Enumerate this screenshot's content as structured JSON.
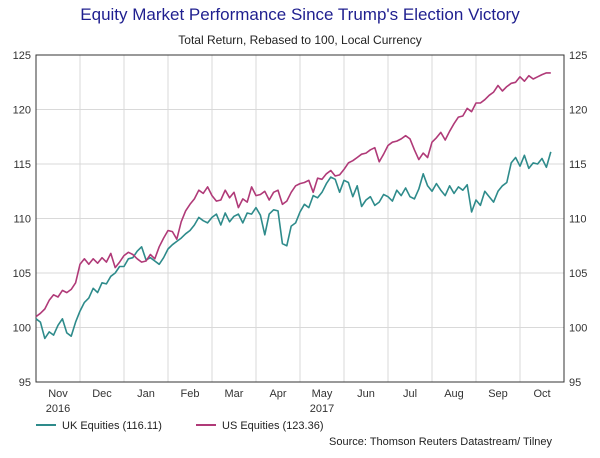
{
  "chart_data": {
    "type": "line",
    "title": "Equity Market Performance Since Trump's Election Victory",
    "subtitle": "Total Return, Rebased to 100, Local Currency",
    "xlabel": "",
    "ylabel": "",
    "ylim": [
      95,
      125
    ],
    "yticks": [
      95,
      100,
      105,
      110,
      115,
      120,
      125
    ],
    "x_tick_labels": [
      "Nov",
      "Dec",
      "Jan",
      "Feb",
      "Mar",
      "Apr",
      "May",
      "Jun",
      "Jul",
      "Aug",
      "Sep",
      "Oct"
    ],
    "x_year_labels": [
      {
        "label": "2016",
        "at_month": 0
      },
      {
        "label": "2017",
        "at_month": 6
      }
    ],
    "x_range": [
      0,
      12
    ],
    "grid": true,
    "legend_position": "bottom",
    "series": [
      {
        "name": "UK Equities (116.11)",
        "color": "#2e8b8b",
        "x": [
          0.0,
          0.1,
          0.2,
          0.3,
          0.4,
          0.5,
          0.6,
          0.7,
          0.8,
          0.9,
          1.0,
          1.1,
          1.2,
          1.3,
          1.4,
          1.5,
          1.6,
          1.7,
          1.8,
          1.9,
          2.0,
          2.1,
          2.2,
          2.3,
          2.4,
          2.5,
          2.6,
          2.7,
          2.8,
          2.9,
          3.0,
          3.1,
          3.2,
          3.3,
          3.4,
          3.5,
          3.6,
          3.7,
          3.8,
          3.9,
          4.0,
          4.1,
          4.2,
          4.3,
          4.4,
          4.5,
          4.6,
          4.7,
          4.8,
          4.9,
          5.0,
          5.1,
          5.2,
          5.3,
          5.4,
          5.5,
          5.6,
          5.7,
          5.8,
          5.9,
          6.0,
          6.1,
          6.2,
          6.3,
          6.4,
          6.5,
          6.6,
          6.7,
          6.8,
          6.9,
          7.0,
          7.1,
          7.2,
          7.3,
          7.4,
          7.5,
          7.6,
          7.7,
          7.8,
          7.9,
          8.0,
          8.1,
          8.2,
          8.3,
          8.4,
          8.5,
          8.6,
          8.7,
          8.8,
          8.9,
          9.0,
          9.1,
          9.2,
          9.3,
          9.4,
          9.5,
          9.6,
          9.7,
          9.8,
          9.9,
          10.0,
          10.1,
          10.2,
          10.3,
          10.4,
          10.5,
          10.6,
          10.7,
          10.8,
          10.9,
          11.0,
          11.1,
          11.2,
          11.3,
          11.4,
          11.5,
          11.6,
          11.7
        ],
        "y": [
          100.8,
          100.5,
          99.0,
          99.6,
          99.3,
          100.2,
          100.8,
          99.5,
          99.2,
          100.5,
          101.5,
          102.3,
          102.7,
          103.6,
          103.2,
          104.1,
          104.0,
          104.7,
          105.0,
          105.6,
          105.6,
          106.3,
          106.4,
          107.0,
          107.4,
          106.2,
          106.4,
          106.1,
          105.8,
          106.4,
          107.2,
          107.6,
          107.9,
          108.2,
          108.6,
          108.9,
          109.4,
          110.1,
          109.8,
          109.6,
          110.1,
          110.4,
          109.4,
          110.5,
          109.7,
          110.2,
          110.4,
          109.6,
          110.5,
          110.4,
          111.0,
          110.3,
          108.5,
          110.4,
          110.8,
          110.7,
          107.7,
          107.5,
          109.3,
          109.6,
          110.6,
          111.3,
          111.0,
          112.1,
          111.9,
          112.4,
          113.2,
          113.8,
          113.6,
          112.4,
          113.5,
          113.3,
          112.0,
          113.0,
          111.1,
          111.7,
          112.0,
          111.2,
          111.5,
          112.2,
          112.0,
          111.6,
          112.6,
          112.1,
          112.8,
          112.0,
          111.8,
          112.7,
          114.1,
          113.0,
          112.5,
          113.2,
          112.6,
          112.1,
          113.0,
          112.3,
          112.9,
          112.6,
          113.1,
          110.6,
          111.7,
          111.2,
          112.5,
          112.0,
          111.5,
          112.5,
          113.0,
          113.3,
          115.1,
          115.6,
          114.8,
          115.8,
          114.6,
          115.1,
          115.0,
          115.5,
          114.7,
          116.11
        ]
      },
      {
        "name": "US Equities (123.36)",
        "color": "#b03a78",
        "x": [
          0.0,
          0.1,
          0.2,
          0.3,
          0.4,
          0.5,
          0.6,
          0.7,
          0.8,
          0.9,
          1.0,
          1.1,
          1.2,
          1.3,
          1.4,
          1.5,
          1.6,
          1.7,
          1.8,
          1.9,
          2.0,
          2.1,
          2.2,
          2.3,
          2.4,
          2.5,
          2.6,
          2.7,
          2.8,
          2.9,
          3.0,
          3.1,
          3.2,
          3.3,
          3.4,
          3.5,
          3.6,
          3.7,
          3.8,
          3.9,
          4.0,
          4.1,
          4.2,
          4.3,
          4.4,
          4.5,
          4.6,
          4.7,
          4.8,
          4.9,
          5.0,
          5.1,
          5.2,
          5.3,
          5.4,
          5.5,
          5.6,
          5.7,
          5.8,
          5.9,
          6.0,
          6.1,
          6.2,
          6.3,
          6.4,
          6.5,
          6.6,
          6.7,
          6.8,
          6.9,
          7.0,
          7.1,
          7.2,
          7.3,
          7.4,
          7.5,
          7.6,
          7.7,
          7.8,
          7.9,
          8.0,
          8.1,
          8.2,
          8.3,
          8.4,
          8.5,
          8.6,
          8.7,
          8.8,
          8.9,
          9.0,
          9.1,
          9.2,
          9.3,
          9.4,
          9.5,
          9.6,
          9.7,
          9.8,
          9.9,
          10.0,
          10.1,
          10.2,
          10.3,
          10.4,
          10.5,
          10.6,
          10.7,
          10.8,
          10.9,
          11.0,
          11.1,
          11.2,
          11.3,
          11.4,
          11.5,
          11.6,
          11.7
        ],
        "y": [
          101.0,
          101.3,
          101.7,
          102.5,
          103.0,
          102.8,
          103.4,
          103.2,
          103.5,
          104.1,
          105.8,
          106.3,
          105.8,
          106.3,
          105.9,
          106.4,
          106.0,
          106.8,
          105.5,
          106.0,
          106.6,
          106.9,
          106.7,
          106.3,
          106.0,
          106.1,
          106.7,
          106.3,
          107.4,
          108.2,
          108.9,
          108.8,
          108.1,
          109.7,
          110.7,
          111.3,
          111.8,
          112.6,
          112.3,
          112.9,
          112.1,
          111.6,
          111.7,
          112.6,
          111.9,
          112.4,
          111.0,
          111.8,
          111.5,
          112.9,
          112.1,
          112.2,
          112.5,
          111.7,
          112.4,
          112.6,
          111.3,
          111.6,
          112.4,
          113.0,
          113.2,
          113.3,
          113.5,
          112.4,
          113.7,
          113.6,
          114.1,
          114.4,
          113.9,
          114.0,
          114.5,
          115.1,
          115.3,
          115.6,
          115.9,
          116.0,
          116.3,
          116.5,
          115.2,
          115.9,
          116.7,
          117.0,
          117.1,
          117.3,
          117.6,
          117.3,
          116.3,
          115.4,
          116.0,
          115.6,
          117.0,
          117.4,
          117.9,
          117.2,
          118.0,
          118.7,
          119.3,
          119.4,
          120.1,
          119.8,
          120.6,
          120.6,
          120.9,
          121.3,
          121.6,
          122.2,
          121.7,
          122.1,
          122.4,
          122.5,
          123.0,
          122.6,
          123.1,
          122.8,
          123.0,
          123.2,
          123.36,
          123.36
        ]
      }
    ]
  },
  "source": "Source: Thomson Reuters Datastream/ Tilney"
}
